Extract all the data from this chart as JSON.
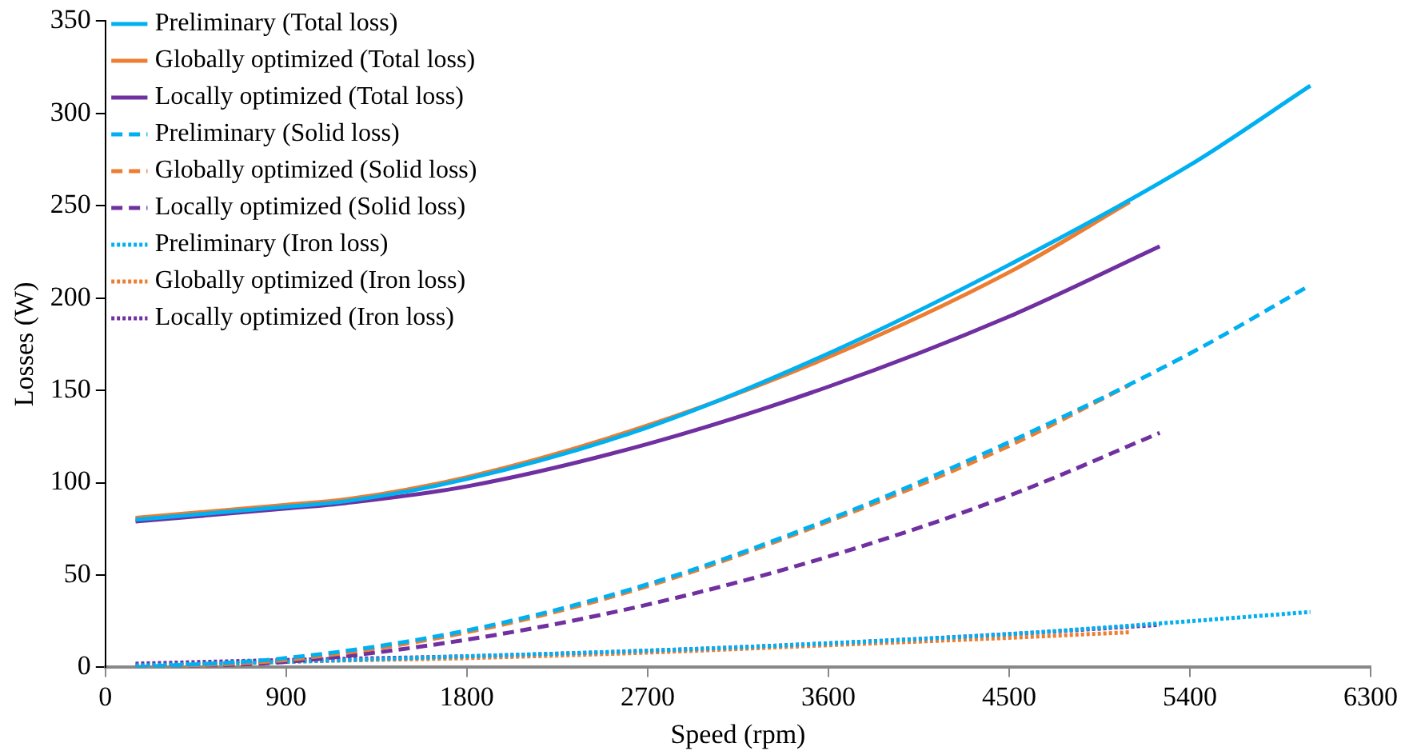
{
  "chart_data": {
    "type": "line",
    "xlabel": "Speed (rpm)",
    "ylabel": "Losses (W)",
    "xlim": [
      0,
      6300
    ],
    "xticks": [
      0,
      900,
      1800,
      2700,
      3600,
      4500,
      5400,
      6300
    ],
    "ylim": [
      0,
      350
    ],
    "yticks": [
      0,
      50,
      100,
      150,
      200,
      250,
      300,
      350
    ],
    "grid": false,
    "legend": "top left",
    "marker": "none",
    "series": [
      {
        "name": "Preliminary (Total loss)",
        "color": "#00b0f0",
        "line_style": "solid",
        "x": [
          150,
          900,
          1200,
          1800,
          2700,
          3600,
          4500,
          5400,
          6000
        ],
        "values": [
          80,
          87,
          90,
          102,
          130,
          170,
          218,
          272,
          315
        ]
      },
      {
        "name": "Globally optimized (Total loss)",
        "color": "#ed7d31",
        "line_style": "solid",
        "x": [
          150,
          900,
          1200,
          1800,
          2700,
          3600,
          4500,
          5100
        ],
        "values": [
          81,
          88,
          91,
          103,
          131,
          168,
          214,
          252
        ]
      },
      {
        "name": "Locally optimized (Total loss)",
        "color": "#7030a0",
        "line_style": "solid",
        "x": [
          150,
          900,
          1200,
          1800,
          2700,
          3600,
          4500,
          5250
        ],
        "values": [
          79,
          86,
          89,
          98,
          121,
          152,
          190,
          228
        ]
      },
      {
        "name": "Preliminary (Solid loss)",
        "color": "#00b0f0",
        "line_style": "dashed",
        "x": [
          150,
          900,
          1800,
          2700,
          3600,
          4500,
          5400,
          6000
        ],
        "values": [
          0,
          5,
          20,
          45,
          80,
          122,
          170,
          207
        ]
      },
      {
        "name": "Globally optimized (Solid loss)",
        "color": "#ed7d31",
        "line_style": "dashed",
        "x": [
          150,
          900,
          1800,
          2700,
          3600,
          4500,
          5100
        ],
        "values": [
          0,
          4,
          19,
          44,
          79,
          120,
          153
        ]
      },
      {
        "name": "Locally optimized (Solid loss)",
        "color": "#7030a0",
        "line_style": "dashed",
        "x": [
          150,
          900,
          1800,
          2700,
          3600,
          4500,
          5250
        ],
        "values": [
          0,
          3,
          15,
          34,
          60,
          93,
          127
        ]
      },
      {
        "name": "Preliminary (Iron loss)",
        "color": "#00b0f0",
        "line_style": "dotted",
        "x": [
          150,
          900,
          1800,
          2700,
          3600,
          4500,
          5400,
          6000
        ],
        "values": [
          1,
          3,
          6,
          9,
          13,
          18,
          25,
          30
        ]
      },
      {
        "name": "Globally optimized (Iron loss)",
        "color": "#ed7d31",
        "line_style": "dotted",
        "x": [
          150,
          900,
          1800,
          2700,
          3600,
          4500,
          5100
        ],
        "values": [
          0,
          3,
          5,
          8,
          12,
          16,
          19
        ]
      },
      {
        "name": "Locally optimized (Iron loss)",
        "color": "#7030a0",
        "line_style": "dotted",
        "x": [
          150,
          900,
          1800,
          2700,
          3600,
          4500,
          5250
        ],
        "values": [
          2,
          4,
          6,
          9,
          13,
          18,
          23
        ]
      }
    ]
  }
}
